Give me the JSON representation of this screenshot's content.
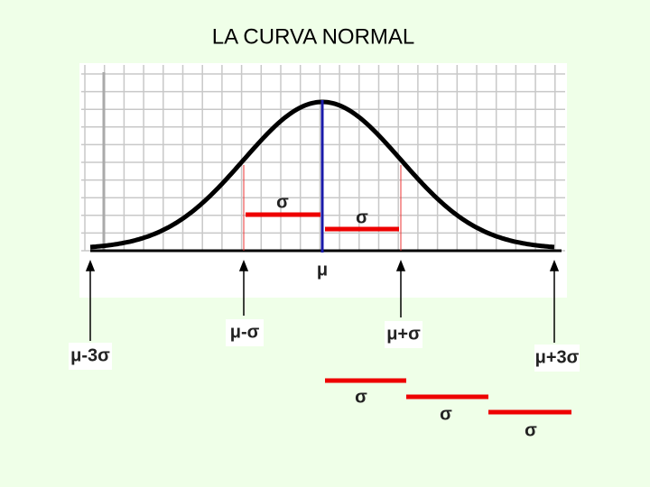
{
  "title": "LA  CURVA  NORMAL",
  "curve_labels": {
    "sigma_left": "σ",
    "sigma_right": "σ",
    "mu": "μ"
  },
  "arrow_labels": {
    "mu_minus_3sigma": "μ-3σ",
    "mu_minus_sigma": "μ-σ",
    "mu_plus_sigma": "μ+σ",
    "mu_plus_3sigma": "μ+3σ"
  },
  "bottom_labels": [
    "σ",
    "σ",
    "σ"
  ]
}
